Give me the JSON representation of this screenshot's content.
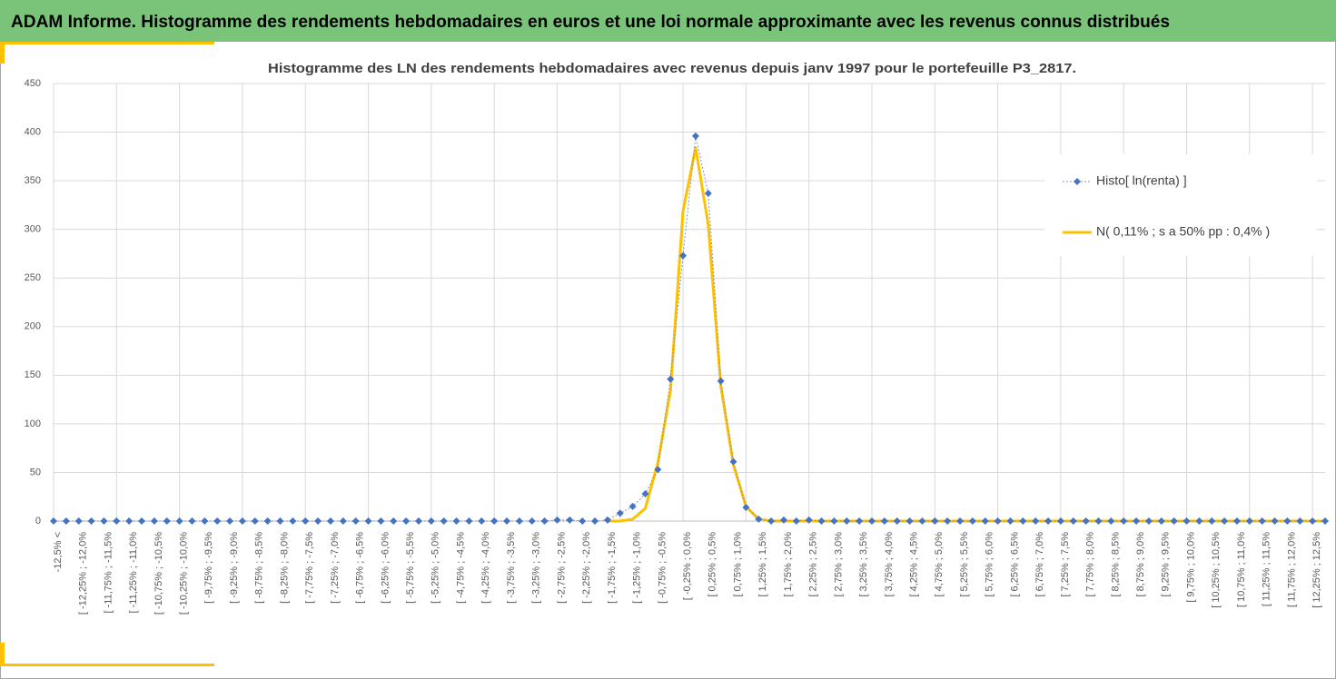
{
  "header": {
    "title": "ADAM Informe. Histogramme des rendements hebdomadaires en euros et une loi normale approximante avec les revenus connus distribués"
  },
  "chart_data": {
    "type": "line",
    "title": "Histogramme des LN des rendements hebdomadaires avec revenus depuis janv 1997 pour le portefeuille P3_2817.",
    "categories": [
      "-12,5% <",
      null,
      "[ -12,25% ; -12,0%",
      null,
      "[ -11,75% ; -11,5%",
      null,
      "[ -11,25% ; -11,0%",
      null,
      "[ -10,75% ; -10,5%",
      null,
      "[ -10,25% ; -10,0%",
      null,
      "[ -9,75% ; -9,5%",
      null,
      "[ -9,25% ; -9,0%",
      null,
      "[ -8,75% ; -8,5%",
      null,
      "[ -8,25% ; -8,0%",
      null,
      "[ -7,75% ; -7,5%",
      null,
      "[ -7,25% ; -7,0%",
      null,
      "[ -6,75% ; -6,5%",
      null,
      "[ -6,25% ; -6,0%",
      null,
      "[ -5,75% ; -5,5%",
      null,
      "[ -5,25% ; -5,0%",
      null,
      "[ -4,75% ; -4,5%",
      null,
      "[ -4,25% ; -4,0%",
      null,
      "[ -3,75% ; -3,5%",
      null,
      "[ -3,25% ; -3,0%",
      null,
      "[ -2,75% ; -2,5%",
      null,
      "[ -2,25% ; -2,0%",
      null,
      "[ -1,75% ; -1,5%",
      null,
      "[ -1,25% ; -1,0%",
      null,
      "[ -0,75% ; -0,5%",
      null,
      "[ -0,25% ; 0,0%",
      null,
      "[ 0,25% ; 0,5%",
      null,
      "[ 0,75% ; 1,0%",
      null,
      "[ 1,25% ; 1,5%",
      null,
      "[ 1,75% ; 2,0%",
      null,
      "[ 2,25% ; 2,5%",
      null,
      "[ 2,75% ; 3,0%",
      null,
      "[ 3,25% ; 3,5%",
      null,
      "[ 3,75% ; 4,0%",
      null,
      "[ 4,25% ; 4,5%",
      null,
      "[ 4,75% ; 5,0%",
      null,
      "[ 5,25% ; 5,5%",
      null,
      "[ 5,75% ; 6,0%",
      null,
      "[ 6,25% ; 6,5%",
      null,
      "[ 6,75% ; 7,0%",
      null,
      "[ 7,25% ; 7,5%",
      null,
      "[ 7,75% ; 8,0%",
      null,
      "[ 8,25% ; 8,5%",
      null,
      "[ 8,75% ; 9,0%",
      null,
      "[ 9,25% ; 9,5%",
      null,
      "[ 9,75% ; 10,0%",
      null,
      "[ 10,25% ; 10,5%",
      null,
      "[ 10,75% ; 11,0%",
      null,
      "[ 11,25% ; 11,5%",
      null,
      "[ 11,75% ; 12,0%",
      null,
      "[ 12,25% ; 12,5%",
      null
    ],
    "series": [
      {
        "name": "Histo[ ln(renta) ]",
        "color": "#4472c4",
        "values": [
          0,
          0,
          0,
          0,
          0,
          0,
          0,
          0,
          0,
          0,
          0,
          0,
          0,
          0,
          0,
          0,
          0,
          0,
          0,
          0,
          0,
          0,
          0,
          0,
          0,
          0,
          0,
          0,
          0,
          0,
          0,
          0,
          0,
          0,
          0,
          0,
          0,
          0,
          0,
          0,
          1,
          1,
          0,
          0,
          1,
          8,
          15,
          28,
          53,
          146,
          273,
          396,
          337,
          144,
          61,
          14,
          2,
          0,
          1,
          0,
          1,
          0,
          0,
          0,
          0,
          0,
          0,
          0,
          0,
          0,
          0,
          0,
          0,
          0,
          0,
          0,
          0,
          0,
          0,
          0,
          0,
          0,
          0,
          0,
          0,
          0,
          0,
          0,
          0,
          0,
          0,
          0,
          0,
          0,
          0,
          0,
          0,
          0,
          0,
          0,
          0,
          0
        ]
      },
      {
        "name": "N( 0,11% ; s a 50% pp : 0,4% )",
        "color": "#ffc000",
        "values": [
          null,
          null,
          null,
          null,
          null,
          null,
          null,
          null,
          null,
          null,
          null,
          null,
          null,
          null,
          null,
          null,
          null,
          null,
          null,
          null,
          null,
          null,
          null,
          null,
          null,
          null,
          null,
          null,
          null,
          null,
          null,
          null,
          null,
          null,
          null,
          null,
          null,
          null,
          null,
          null,
          null,
          null,
          null,
          null,
          0,
          0,
          2,
          13,
          60,
          134,
          319,
          384,
          305,
          139,
          58,
          15,
          2,
          0,
          0,
          0,
          0,
          0,
          0,
          0,
          0,
          0,
          0,
          0,
          0,
          0,
          0,
          0,
          0,
          0,
          0,
          0,
          0,
          0,
          0,
          0,
          0,
          0,
          0,
          0,
          0,
          0,
          0,
          0,
          0,
          0,
          0,
          0,
          0,
          0,
          0,
          0,
          0,
          0,
          0,
          0,
          0,
          0
        ]
      }
    ],
    "ylim": [
      0,
      450
    ],
    "yticks": [
      0,
      50,
      100,
      150,
      200,
      250,
      300,
      350,
      400,
      450
    ],
    "grid": true,
    "legend": "right"
  }
}
